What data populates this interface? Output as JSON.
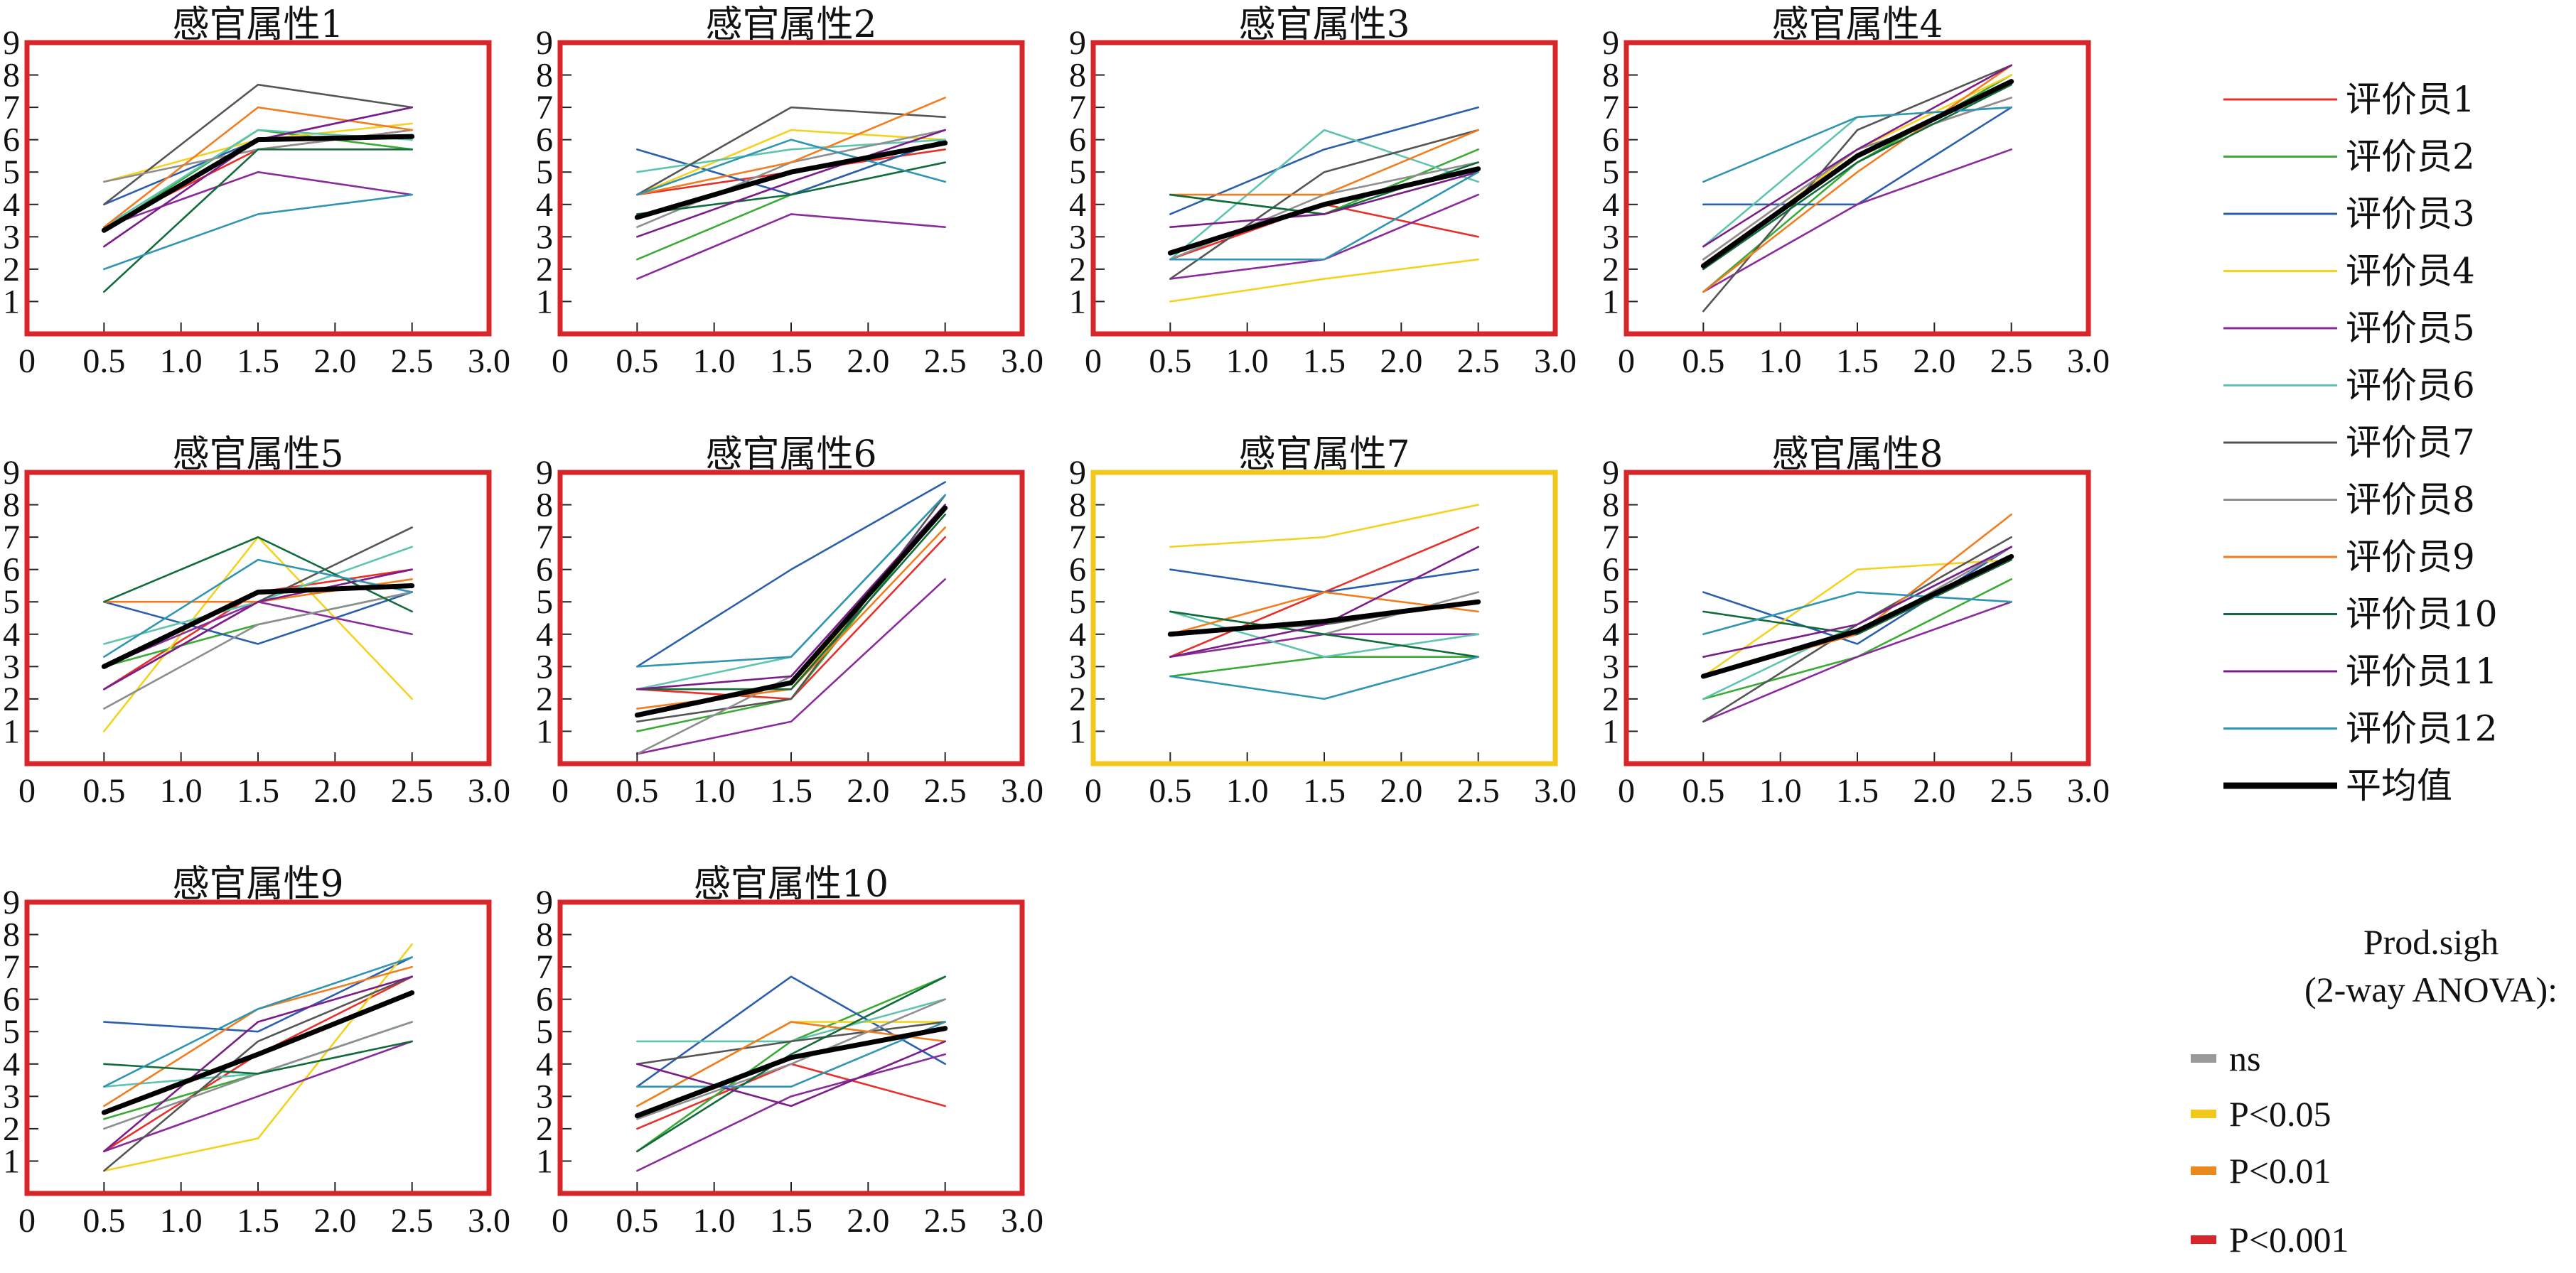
{
  "chart_data": {
    "type": "line",
    "x": [
      0.5,
      1.5,
      2.5
    ],
    "xticks": [
      "0",
      "0.5",
      "1.0",
      "1.5",
      "2.0",
      "2.5",
      "3.0"
    ],
    "yticks": [
      "1",
      "2",
      "3",
      "4",
      "5",
      "6",
      "7",
      "8",
      "9"
    ],
    "xlim": [
      0,
      3
    ],
    "ylim": [
      0,
      9
    ],
    "grid": false,
    "legend_position": "right",
    "series_names": [
      "评价员1",
      "评价员2",
      "评价员3",
      "评价员4",
      "评价员5",
      "评价员6",
      "评价员7",
      "评价员8",
      "评价员9",
      "评价员10",
      "评价员11",
      "评价员12",
      "平均值"
    ],
    "series_colors": [
      "#e8302a",
      "#3aab35",
      "#2b5fad",
      "#f4d21f",
      "#8a2a9c",
      "#5ec4b0",
      "#555555",
      "#8e8e8e",
      "#f07d1f",
      "#116b3a",
      "#7b1c8a",
      "#2f95b2",
      "#000000"
    ],
    "significance": {
      "title": [
        "Prod.sigh",
        "(2-way ANOVA):"
      ],
      "levels": [
        {
          "label": "ns",
          "color": "#9a9a9a"
        },
        {
          "label": "P<0.05",
          "color": "#f4c71c"
        },
        {
          "label": "P<0.01",
          "color": "#ea8a1e"
        },
        {
          "label": "P<0.001",
          "color": "#d7262b"
        }
      ]
    },
    "panels": [
      {
        "title": "感官属性1",
        "frame_color": "#d7262b",
        "series": [
          [
            3.3,
            5.7,
            6.3
          ],
          [
            3.2,
            6.3,
            5.7
          ],
          [
            4.0,
            6.0,
            7.0
          ],
          [
            4.7,
            6.0,
            6.5
          ],
          [
            3.3,
            5.0,
            4.3
          ],
          [
            3.3,
            6.3,
            6.0
          ],
          [
            4.0,
            7.7,
            7.0
          ],
          [
            4.7,
            5.7,
            6.3
          ],
          [
            3.3,
            7.0,
            6.3
          ],
          [
            1.3,
            5.7,
            5.7
          ],
          [
            2.7,
            6.0,
            7.0
          ],
          [
            2.0,
            3.7,
            4.3
          ],
          [
            3.2,
            6.0,
            6.1
          ]
        ]
      },
      {
        "title": "感官属性2",
        "frame_color": "#d7262b",
        "series": [
          [
            4.3,
            5.0,
            5.7
          ],
          [
            2.3,
            4.3,
            6.0
          ],
          [
            5.7,
            4.3,
            6.0
          ],
          [
            4.3,
            6.3,
            6.0
          ],
          [
            1.7,
            3.7,
            3.3
          ],
          [
            5.0,
            5.7,
            6.0
          ],
          [
            4.3,
            7.0,
            6.7
          ],
          [
            3.3,
            5.3,
            6.3
          ],
          [
            4.3,
            5.3,
            7.3
          ],
          [
            3.7,
            4.3,
            5.3
          ],
          [
            3.0,
            4.7,
            6.3
          ],
          [
            4.3,
            6.0,
            4.7
          ],
          [
            3.6,
            5.0,
            5.9
          ]
        ]
      },
      {
        "title": "感官属性3",
        "frame_color": "#d7262b",
        "series": [
          [
            2.3,
            4.0,
            3.0
          ],
          [
            4.3,
            3.7,
            5.7
          ],
          [
            3.7,
            5.7,
            7.0
          ],
          [
            1.0,
            1.7,
            2.3
          ],
          [
            1.7,
            2.3,
            4.3
          ],
          [
            2.3,
            6.3,
            4.7
          ],
          [
            1.7,
            5.0,
            6.3
          ],
          [
            2.3,
            4.3,
            5.3
          ],
          [
            4.3,
            4.3,
            6.3
          ],
          [
            4.3,
            3.7,
            5.3
          ],
          [
            3.3,
            3.7,
            5.0
          ],
          [
            2.3,
            2.3,
            5.0
          ],
          [
            2.5,
            4.0,
            5.1
          ]
        ]
      },
      {
        "title": "感官属性4",
        "frame_color": "#d7262b",
        "series": [
          [
            2.3,
            5.7,
            7.3
          ],
          [
            1.3,
            5.3,
            8.0
          ],
          [
            4.0,
            4.0,
            7.0
          ],
          [
            2.0,
            5.7,
            8.0
          ],
          [
            1.3,
            4.0,
            5.7
          ],
          [
            2.7,
            6.7,
            7.0
          ],
          [
            0.7,
            6.3,
            8.3
          ],
          [
            2.3,
            5.7,
            7.3
          ],
          [
            1.3,
            5.0,
            8.3
          ],
          [
            2.0,
            5.3,
            7.7
          ],
          [
            2.7,
            5.7,
            8.3
          ],
          [
            4.7,
            6.7,
            7.0
          ],
          [
            2.1,
            5.5,
            7.8
          ]
        ]
      },
      {
        "title": "感官属性5",
        "frame_color": "#d7262b",
        "series": [
          [
            2.3,
            5.3,
            6.0
          ],
          [
            3.0,
            4.3,
            5.3
          ],
          [
            5.0,
            3.7,
            5.3
          ],
          [
            1.0,
            7.0,
            2.0
          ],
          [
            3.0,
            5.0,
            4.0
          ],
          [
            3.7,
            5.0,
            6.7
          ],
          [
            2.3,
            5.0,
            7.3
          ],
          [
            1.7,
            4.3,
            5.3
          ],
          [
            5.0,
            5.0,
            5.7
          ],
          [
            5.0,
            7.0,
            4.7
          ],
          [
            2.3,
            5.0,
            6.0
          ],
          [
            3.3,
            6.3,
            5.3
          ],
          [
            3.0,
            5.3,
            5.5
          ]
        ]
      },
      {
        "title": "感官属性6",
        "frame_color": "#d7262b",
        "series": [
          [
            2.3,
            2.0,
            7.0
          ],
          [
            1.0,
            2.0,
            8.0
          ],
          [
            3.0,
            6.0,
            8.7
          ],
          [
            2.3,
            2.3,
            8.0
          ],
          [
            0.3,
            1.3,
            5.7
          ],
          [
            2.3,
            3.3,
            8.3
          ],
          [
            1.3,
            2.0,
            8.3
          ],
          [
            0.3,
            2.7,
            8.0
          ],
          [
            1.7,
            2.3,
            7.3
          ],
          [
            2.3,
            2.3,
            7.7
          ],
          [
            2.3,
            2.7,
            8.0
          ],
          [
            3.0,
            3.3,
            8.3
          ],
          [
            1.5,
            2.5,
            7.9
          ]
        ]
      },
      {
        "title": "感官属性7",
        "frame_color": "#f4c71c",
        "series": [
          [
            3.3,
            5.3,
            7.3
          ],
          [
            2.7,
            3.3,
            3.3
          ],
          [
            6.0,
            5.3,
            6.0
          ],
          [
            6.7,
            7.0,
            8.0
          ],
          [
            3.3,
            4.0,
            4.0
          ],
          [
            4.7,
            3.3,
            4.0
          ],
          [
            4.0,
            4.3,
            5.0
          ],
          [
            4.7,
            4.0,
            5.3
          ],
          [
            4.0,
            5.3,
            4.7
          ],
          [
            4.7,
            4.0,
            3.3
          ],
          [
            3.3,
            4.3,
            6.7
          ],
          [
            2.7,
            2.0,
            3.3
          ],
          [
            4.0,
            4.4,
            5.0
          ]
        ]
      },
      {
        "title": "感官属性8",
        "frame_color": "#d7262b",
        "series": [
          [
            2.7,
            4.0,
            6.3
          ],
          [
            2.0,
            3.3,
            5.7
          ],
          [
            5.3,
            3.7,
            6.7
          ],
          [
            2.7,
            6.0,
            6.3
          ],
          [
            1.3,
            3.3,
            5.0
          ],
          [
            2.0,
            4.3,
            6.7
          ],
          [
            1.3,
            4.3,
            7.0
          ],
          [
            2.7,
            4.0,
            6.7
          ],
          [
            2.7,
            4.0,
            7.7
          ],
          [
            4.7,
            4.0,
            6.3
          ],
          [
            3.3,
            4.3,
            6.7
          ],
          [
            4.0,
            5.3,
            5.0
          ],
          [
            2.7,
            4.1,
            6.4
          ]
        ]
      },
      {
        "title": "感官属性9",
        "frame_color": "#d7262b",
        "series": [
          [
            1.3,
            4.3,
            6.7
          ],
          [
            2.3,
            3.7,
            5.3
          ],
          [
            5.3,
            5.0,
            7.3
          ],
          [
            0.7,
            1.7,
            7.7
          ],
          [
            1.3,
            3.0,
            4.7
          ],
          [
            3.3,
            3.7,
            5.3
          ],
          [
            0.7,
            4.7,
            6.7
          ],
          [
            2.0,
            3.7,
            5.3
          ],
          [
            2.7,
            5.7,
            7.0
          ],
          [
            4.0,
            3.7,
            4.7
          ],
          [
            1.3,
            5.3,
            6.7
          ],
          [
            3.3,
            5.7,
            7.3
          ],
          [
            2.5,
            4.3,
            6.2
          ]
        ]
      },
      {
        "title": "感官属性10",
        "frame_color": "#d7262b",
        "series": [
          [
            2.0,
            4.0,
            2.7
          ],
          [
            1.3,
            4.7,
            6.7
          ],
          [
            3.3,
            6.7,
            4.0
          ],
          [
            2.7,
            5.3,
            5.3
          ],
          [
            0.7,
            3.0,
            4.3
          ],
          [
            4.7,
            4.7,
            6.0
          ],
          [
            4.0,
            4.7,
            5.3
          ],
          [
            2.3,
            4.0,
            6.0
          ],
          [
            2.7,
            5.3,
            4.7
          ],
          [
            1.3,
            4.3,
            6.7
          ],
          [
            4.0,
            2.7,
            4.7
          ],
          [
            3.3,
            3.3,
            5.3
          ],
          [
            2.4,
            4.2,
            5.1
          ]
        ]
      }
    ]
  }
}
